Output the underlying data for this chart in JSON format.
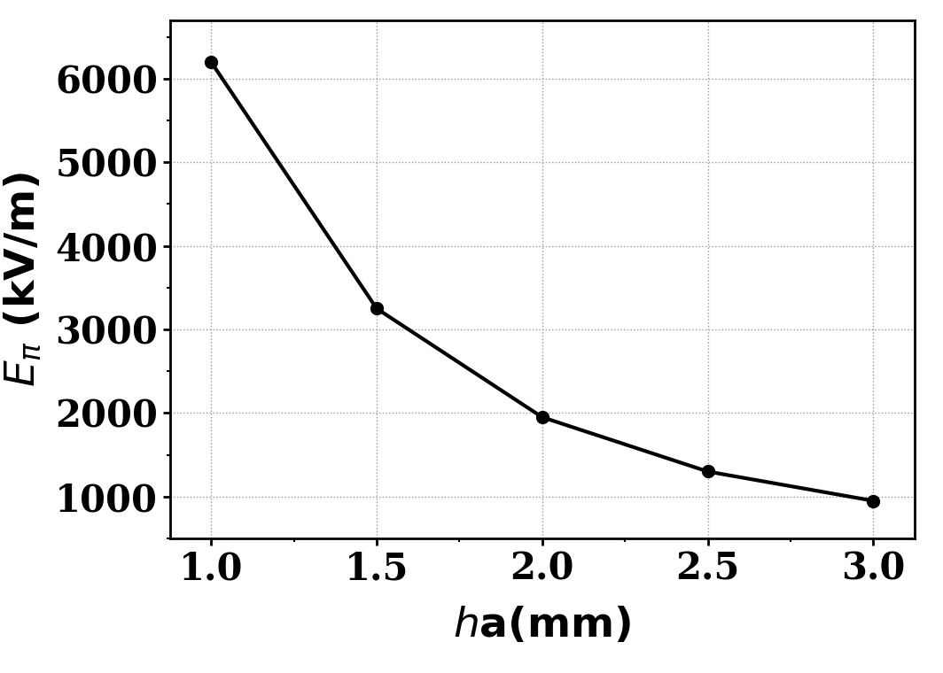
{
  "x": [
    1.0,
    1.5,
    2.0,
    2.5,
    3.0
  ],
  "y": [
    6200,
    3250,
    1950,
    1300,
    950
  ],
  "xlim": [
    0.875,
    3.125
  ],
  "ylim": [
    500,
    6700
  ],
  "xticks": [
    1.0,
    1.5,
    2.0,
    2.5,
    3.0
  ],
  "yticks": [
    1000,
    2000,
    3000,
    4000,
    5000,
    6000
  ],
  "line_color": "#000000",
  "line_width": 3.0,
  "marker": "o",
  "marker_size": 9,
  "marker_facecolor": "#000000",
  "background_color": "#ffffff",
  "grid_color": "#999999",
  "grid_linestyle": ":",
  "grid_linewidth": 1.0,
  "tick_fontsize": 30,
  "label_fontsize": 34,
  "spine_linewidth": 2.0
}
